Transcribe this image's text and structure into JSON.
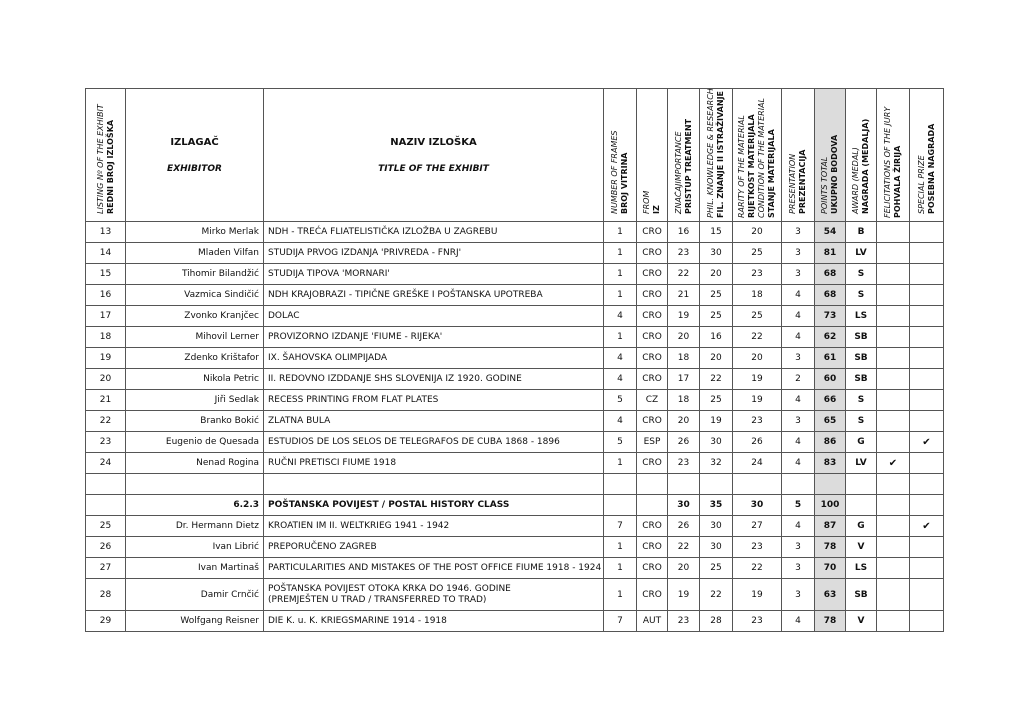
{
  "header": {
    "listing": {
      "hr": "REDNI BROJ IZLOŠKA",
      "en": "LISTING Nº OF THE EXHIBIT"
    },
    "exhibitor": {
      "hr": "IZLAGAČ",
      "en": "EXHIBITOR"
    },
    "title": {
      "hr": "NAZIV IZLOŠKA",
      "en": "TITLE OF THE EXHIBIT"
    },
    "frames": {
      "hr": "BROJ VITRINA",
      "en": "NUMBER OF FRAMES"
    },
    "from": {
      "hr": "IZ",
      "en": "FROM"
    },
    "treatment": {
      "hr": "PRISTUP TREATMENT",
      "en": "ZNAČAJIMPORTANCE"
    },
    "knowledge": {
      "hr": "FIL. ZNANJE II ISTRAŽIVANJE",
      "en": "PHIL. KNOWLEDGE & RESEARCH"
    },
    "condition": {
      "hr": "STANJE MATERIJALA",
      "en": "CONDITION OF THE MATERIAL",
      "hr2": "RIJETKOST MATERIJALA",
      "en2": "RARITY OF THE MATERIAL"
    },
    "presentation": {
      "hr": "PREZENTACIJA",
      "en": "PRESENTATION"
    },
    "total": {
      "hr": "UKUPNO BODOVA",
      "en": "POINTS TOTAL"
    },
    "award": {
      "hr": "NAGRADA (MEDALJA)",
      "en": "AWARD (MEDAL)"
    },
    "felicitations": {
      "hr": "POHVALA ŽIRIJA",
      "en": "FELICITATIONS OF THE JURY"
    },
    "special": {
      "hr": "POSEBNA NAGRADA",
      "en": "SPECIAL PRIZE"
    }
  },
  "rows": [
    {
      "no": "13",
      "exhibitor": "Mirko Merlak",
      "title": "NDH - TREĆA FLIATELISTIČKA IZLOŽBA U ZAGREBU",
      "frames": "1",
      "from": "CRO",
      "treatment": "16",
      "knowledge": "15",
      "condition": "20",
      "presentation": "3",
      "total": "54",
      "award": "B",
      "felicitations": "",
      "special": ""
    },
    {
      "no": "14",
      "exhibitor": "Mladen Vilfan",
      "title": "STUDIJA PRVOG IZDANJA 'PRIVREDA - FNRJ'",
      "frames": "1",
      "from": "CRO",
      "treatment": "23",
      "knowledge": "30",
      "condition": "25",
      "presentation": "3",
      "total": "81",
      "award": "LV",
      "felicitations": "",
      "special": ""
    },
    {
      "no": "15",
      "exhibitor": "Tihomir Bilandžić",
      "title": "STUDIJA TIPOVA 'MORNARI'",
      "frames": "1",
      "from": "CRO",
      "treatment": "22",
      "knowledge": "20",
      "condition": "23",
      "presentation": "3",
      "total": "68",
      "award": "S",
      "felicitations": "",
      "special": ""
    },
    {
      "no": "16",
      "exhibitor": "Vazmica Sindičić",
      "title": "NDH KRAJOBRAZI - TIPIČNE GREŠKE I POŠTANSKA UPOTREBA",
      "frames": "1",
      "from": "CRO",
      "treatment": "21",
      "knowledge": "25",
      "condition": "18",
      "presentation": "4",
      "total": "68",
      "award": "S",
      "felicitations": "",
      "special": ""
    },
    {
      "no": "17",
      "exhibitor": "Zvonko Kranjčec",
      "title": "DOLAC",
      "frames": "4",
      "from": "CRO",
      "treatment": "19",
      "knowledge": "25",
      "condition": "25",
      "presentation": "4",
      "total": "73",
      "award": "LS",
      "felicitations": "",
      "special": ""
    },
    {
      "no": "18",
      "exhibitor": "Mihovil Lerner",
      "title": "PROVIZORNO IZDANJE 'FIUME - RIJEKA'",
      "frames": "1",
      "from": "CRO",
      "treatment": "20",
      "knowledge": "16",
      "condition": "22",
      "presentation": "4",
      "total": "62",
      "award": "SB",
      "felicitations": "",
      "special": ""
    },
    {
      "no": "19",
      "exhibitor": "Zdenko Krištafor",
      "title": "IX. ŠAHOVSKA OLIMPIJADA",
      "frames": "4",
      "from": "CRO",
      "treatment": "18",
      "knowledge": "20",
      "condition": "20",
      "presentation": "3",
      "total": "61",
      "award": "SB",
      "felicitations": "",
      "special": ""
    },
    {
      "no": "20",
      "exhibitor": "Nikola Petric",
      "title": "II. REDOVNO IZDDANJE SHS SLOVENIJA IZ 1920. GODINE",
      "frames": "4",
      "from": "CRO",
      "treatment": "17",
      "knowledge": "22",
      "condition": "19",
      "presentation": "2",
      "total": "60",
      "award": "SB",
      "felicitations": "",
      "special": ""
    },
    {
      "no": "21",
      "exhibitor": "Jiři Sedlak",
      "title": "RECESS PRINTING FROM FLAT PLATES",
      "frames": "5",
      "from": "CZ",
      "treatment": "18",
      "knowledge": "25",
      "condition": "19",
      "presentation": "4",
      "total": "66",
      "award": "S",
      "felicitations": "",
      "special": ""
    },
    {
      "no": "22",
      "exhibitor": "Branko Bokić",
      "title": "ZLATNA BULA",
      "frames": "4",
      "from": "CRO",
      "treatment": "20",
      "knowledge": "19",
      "condition": "23",
      "presentation": "3",
      "total": "65",
      "award": "S",
      "felicitations": "",
      "special": ""
    },
    {
      "no": "23",
      "exhibitor": "Eugenio de Quesada",
      "title": "ESTUDIOS DE LOS SELOS DE TELEGRAFOS DE CUBA 1868 - 1896",
      "frames": "5",
      "from": "ESP",
      "treatment": "26",
      "knowledge": "30",
      "condition": "26",
      "presentation": "4",
      "total": "86",
      "award": "G",
      "felicitations": "",
      "special": "✔"
    },
    {
      "no": "24",
      "exhibitor": "Nenad Rogina",
      "title": "RUČNI PRETISCI FIUME 1918",
      "frames": "1",
      "from": "CRO",
      "treatment": "23",
      "knowledge": "32",
      "condition": "24",
      "presentation": "4",
      "total": "83",
      "award": "LV",
      "felicitations": "✔",
      "special": ""
    },
    {
      "type": "blank"
    },
    {
      "type": "section",
      "exhibitor": "6.2.3",
      "title": "POŠTANSKA POVIJEST / POSTAL HISTORY CLASS",
      "treatment": "30",
      "knowledge": "35",
      "condition": "30",
      "presentation": "5",
      "total": "100"
    },
    {
      "no": "25",
      "exhibitor": "Dr. Hermann Dietz",
      "title": "KROATIEN IM II. WELTKRIEG 1941 - 1942",
      "frames": "7",
      "from": "CRO",
      "treatment": "26",
      "knowledge": "30",
      "condition": "27",
      "presentation": "4",
      "total": "87",
      "award": "G",
      "felicitations": "",
      "special": "✔"
    },
    {
      "no": "26",
      "exhibitor": "Ivan Librić",
      "title": "PREPORUČENO ZAGREB",
      "frames": "1",
      "from": "CRO",
      "treatment": "22",
      "knowledge": "30",
      "condition": "23",
      "presentation": "3",
      "total": "78",
      "award": "V",
      "felicitations": "",
      "special": ""
    },
    {
      "no": "27",
      "exhibitor": "Ivan Martinaš",
      "title": "PARTICULARITIES AND MISTAKES OF THE POST OFFICE FIUME 1918 - 1924",
      "frames": "1",
      "from": "CRO",
      "treatment": "20",
      "knowledge": "25",
      "condition": "22",
      "presentation": "3",
      "total": "70",
      "award": "LS",
      "felicitations": "",
      "special": ""
    },
    {
      "no": "28",
      "exhibitor": "Damir Crnčić",
      "title": "POŠTANSKA POVIJEST OTOKA KRKA DO 1946. GODINE",
      "title2": "(PREMJEŠTEN U TRAD / TRANSFERRED TO TRAD)",
      "frames": "1",
      "from": "CRO",
      "treatment": "19",
      "knowledge": "22",
      "condition": "19",
      "presentation": "3",
      "total": "63",
      "award": "SB",
      "felicitations": "",
      "special": ""
    },
    {
      "no": "29",
      "exhibitor": "Wolfgang Reisner",
      "title": "DIE K. u. K. KRIEGSMARINE 1914 - 1918",
      "frames": "7",
      "from": "AUT",
      "treatment": "23",
      "knowledge": "28",
      "condition": "23",
      "presentation": "4",
      "total": "78",
      "award": "V",
      "felicitations": "",
      "special": ""
    }
  ]
}
